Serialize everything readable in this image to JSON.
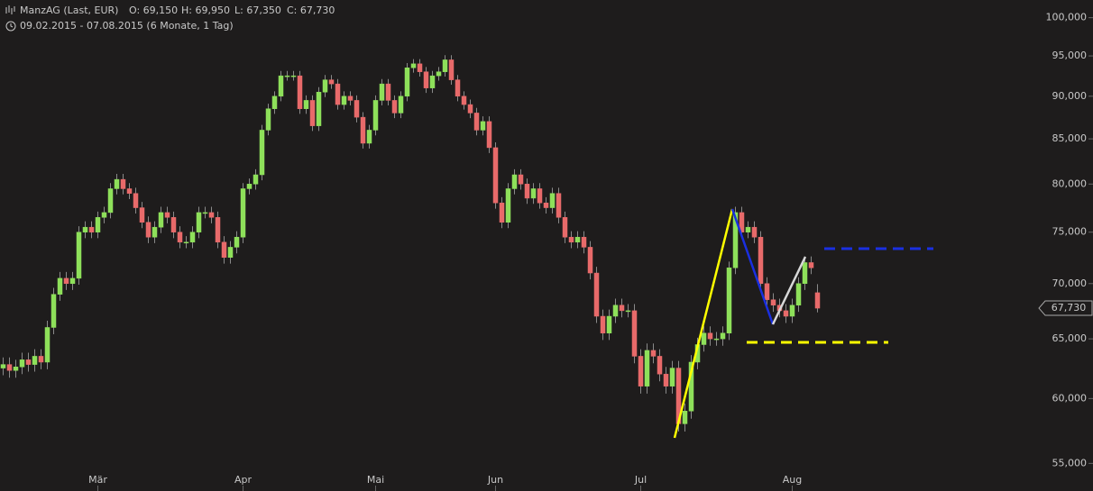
{
  "chart_data": {
    "type": "candlestick",
    "title": "ManzAG (Last, EUR)",
    "ohlc_labels": [
      "O: 69,150",
      "H: 69,950",
      "L: 67,350",
      "C: 67,730"
    ],
    "subtitle": "09.02.2015 - 07.08.2015 (6 Monate, 1 Tag)",
    "categories": [
      null,
      null,
      null,
      null,
      null,
      null,
      null,
      null,
      null,
      null,
      null,
      null,
      null,
      null,
      null,
      "Mär",
      null,
      null,
      null,
      null,
      null,
      null,
      null,
      null,
      null,
      null,
      null,
      null,
      null,
      null,
      null,
      null,
      null,
      null,
      null,
      null,
      null,
      null,
      "Apr",
      null,
      null,
      null,
      null,
      null,
      null,
      null,
      null,
      null,
      null,
      null,
      null,
      null,
      null,
      null,
      null,
      null,
      null,
      null,
      null,
      "Mai",
      null,
      null,
      null,
      null,
      null,
      null,
      null,
      null,
      null,
      null,
      null,
      null,
      null,
      null,
      null,
      null,
      null,
      null,
      "Jun",
      null,
      null,
      null,
      null,
      null,
      null,
      null,
      null,
      null,
      null,
      null,
      null,
      null,
      null,
      null,
      null,
      null,
      null,
      null,
      null,
      null,
      null,
      "Jul",
      null,
      null,
      null,
      null,
      null,
      null,
      null,
      null,
      null,
      null,
      null,
      null,
      null,
      null,
      null,
      null,
      null,
      null,
      null,
      null,
      null,
      null,
      null,
      "Aug",
      null,
      null,
      null,
      null
    ],
    "open": [
      62500,
      62800,
      62300,
      62600,
      63200,
      62800,
      63500,
      63000,
      66000,
      69000,
      70500,
      70000,
      70500,
      75000,
      75500,
      75000,
      76500,
      77000,
      79500,
      80500,
      79500,
      79000,
      77500,
      76000,
      74500,
      75500,
      77000,
      76500,
      75000,
      74000,
      74000,
      75000,
      77000,
      77000,
      76500,
      74000,
      72500,
      73500,
      74500,
      79500,
      80000,
      81000,
      86000,
      88500,
      90000,
      92500,
      92500,
      92500,
      88500,
      89500,
      86500,
      90500,
      92000,
      91500,
      89000,
      90000,
      89500,
      87500,
      84500,
      86000,
      89500,
      91500,
      89500,
      88000,
      90000,
      93500,
      94000,
      93000,
      91000,
      92500,
      93000,
      94500,
      92000,
      90000,
      89000,
      88000,
      86000,
      87000,
      84000,
      78000,
      76000,
      79500,
      81000,
      80000,
      78500,
      79500,
      78000,
      77500,
      79000,
      76500,
      74500,
      74000,
      74500,
      73500,
      71000,
      67000,
      65500,
      67000,
      68000,
      67500,
      67500,
      63500,
      61000,
      64000,
      63500,
      62000,
      61000,
      62500,
      58000,
      59000,
      63000,
      64500,
      65500,
      65000,
      65000,
      65500,
      71500,
      77000,
      75000,
      75500,
      74500,
      70000,
      68500,
      68000,
      67500,
      67000,
      68000,
      70000,
      72000,
      69150
    ],
    "high": [
      63400,
      63400,
      63200,
      63800,
      63800,
      64100,
      64100,
      66600,
      69600,
      71100,
      71100,
      71100,
      75600,
      76100,
      76100,
      77100,
      77600,
      80100,
      81100,
      81100,
      80100,
      79600,
      78100,
      76600,
      76100,
      77600,
      77600,
      77100,
      75600,
      74600,
      75600,
      77600,
      77600,
      77600,
      77100,
      74600,
      74100,
      75100,
      80100,
      80600,
      81600,
      86600,
      89100,
      90600,
      93100,
      93100,
      93100,
      93100,
      90100,
      90100,
      91100,
      92600,
      92600,
      92100,
      90600,
      90600,
      90100,
      88100,
      86600,
      90100,
      92100,
      92100,
      90100,
      90600,
      94100,
      94600,
      94600,
      93600,
      93100,
      93600,
      95100,
      95100,
      92600,
      90600,
      89600,
      88600,
      87600,
      87600,
      84600,
      78600,
      80100,
      81600,
      81600,
      80600,
      80100,
      80100,
      78600,
      79600,
      79600,
      77100,
      75100,
      75100,
      75100,
      74100,
      71600,
      67600,
      67600,
      68600,
      68600,
      68100,
      68100,
      64100,
      64600,
      64600,
      64100,
      62600,
      63100,
      63100,
      59600,
      63600,
      65100,
      66100,
      66100,
      65600,
      66100,
      72100,
      77600,
      77600,
      76100,
      76100,
      75100,
      70600,
      69100,
      68600,
      68100,
      68600,
      70600,
      72600,
      72600,
      69950
    ],
    "low": [
      61900,
      61700,
      61700,
      62000,
      62200,
      62200,
      62400,
      62400,
      65400,
      68400,
      69400,
      69400,
      69900,
      74400,
      74400,
      74400,
      75900,
      76400,
      78900,
      78900,
      78400,
      76900,
      75400,
      73900,
      73900,
      74900,
      75900,
      74400,
      73400,
      73400,
      73400,
      74400,
      76400,
      75900,
      73400,
      71900,
      71900,
      72900,
      73900,
      78900,
      79400,
      80400,
      85400,
      87900,
      89400,
      91900,
      91900,
      87900,
      87900,
      85900,
      85900,
      89900,
      90900,
      88400,
      88400,
      88900,
      86900,
      83900,
      83900,
      85400,
      88900,
      88900,
      87400,
      87400,
      89400,
      92900,
      92400,
      90400,
      90400,
      91900,
      92400,
      91400,
      89400,
      88400,
      87400,
      85400,
      85400,
      83400,
      77400,
      75400,
      75400,
      78900,
      79400,
      77900,
      77900,
      77400,
      76900,
      76900,
      75900,
      73900,
      73400,
      73400,
      72900,
      70400,
      66400,
      64900,
      64900,
      66400,
      66900,
      66900,
      62900,
      60400,
      60400,
      62900,
      61400,
      60400,
      60400,
      57400,
      57400,
      58400,
      62400,
      63900,
      64400,
      64400,
      64400,
      64900,
      70900,
      74400,
      74400,
      73900,
      69400,
      67900,
      67400,
      66900,
      66400,
      66400,
      67400,
      69400,
      70900,
      67350
    ],
    "close": [
      62800,
      62300,
      62600,
      63200,
      62800,
      63500,
      63000,
      66000,
      69000,
      70500,
      70000,
      70500,
      75000,
      75500,
      75000,
      76500,
      77000,
      79500,
      80500,
      79500,
      79000,
      77500,
      76000,
      74500,
      75500,
      77000,
      76500,
      75000,
      74000,
      74000,
      75000,
      77000,
      77000,
      76500,
      74000,
      72500,
      73500,
      74500,
      79500,
      80000,
      81000,
      86000,
      88500,
      90000,
      92500,
      92500,
      92500,
      88500,
      89500,
      86500,
      90500,
      92000,
      91500,
      89000,
      90000,
      89500,
      87500,
      84500,
      86000,
      89500,
      91500,
      89500,
      88000,
      90000,
      93500,
      94000,
      93000,
      91000,
      92500,
      93000,
      94500,
      92000,
      90000,
      89000,
      88000,
      86000,
      87000,
      84000,
      78000,
      76000,
      79500,
      81000,
      80000,
      78500,
      79500,
      78000,
      77500,
      79000,
      76500,
      74500,
      74000,
      74500,
      73500,
      71000,
      67000,
      65500,
      67000,
      68000,
      67500,
      67500,
      63500,
      61000,
      64000,
      63500,
      62000,
      61000,
      62500,
      58000,
      59000,
      63000,
      64500,
      65500,
      65000,
      65000,
      65500,
      71500,
      77000,
      75000,
      75500,
      74500,
      70000,
      68500,
      68000,
      67500,
      67000,
      68000,
      70000,
      72000,
      71500,
      67730
    ],
    "last_value_label": "67,730",
    "up_color": "#8ee05a",
    "down_color": "#e86a6a",
    "log_scale": true,
    "ylim": [
      53000,
      102400
    ],
    "yticks": [
      {
        "value": 55000,
        "label": "55,000"
      },
      {
        "value": 60000,
        "label": "60,000"
      },
      {
        "value": 65000,
        "label": "65,000"
      },
      {
        "value": 70000,
        "label": "70,000"
      },
      {
        "value": 75000,
        "label": "75,000"
      },
      {
        "value": 80000,
        "label": "80,000"
      },
      {
        "value": 85000,
        "label": "85,000"
      },
      {
        "value": 90000,
        "label": "90,000"
      },
      {
        "value": 95000,
        "label": "95,000"
      },
      {
        "value": 100000,
        "label": "100,000"
      }
    ]
  }
}
